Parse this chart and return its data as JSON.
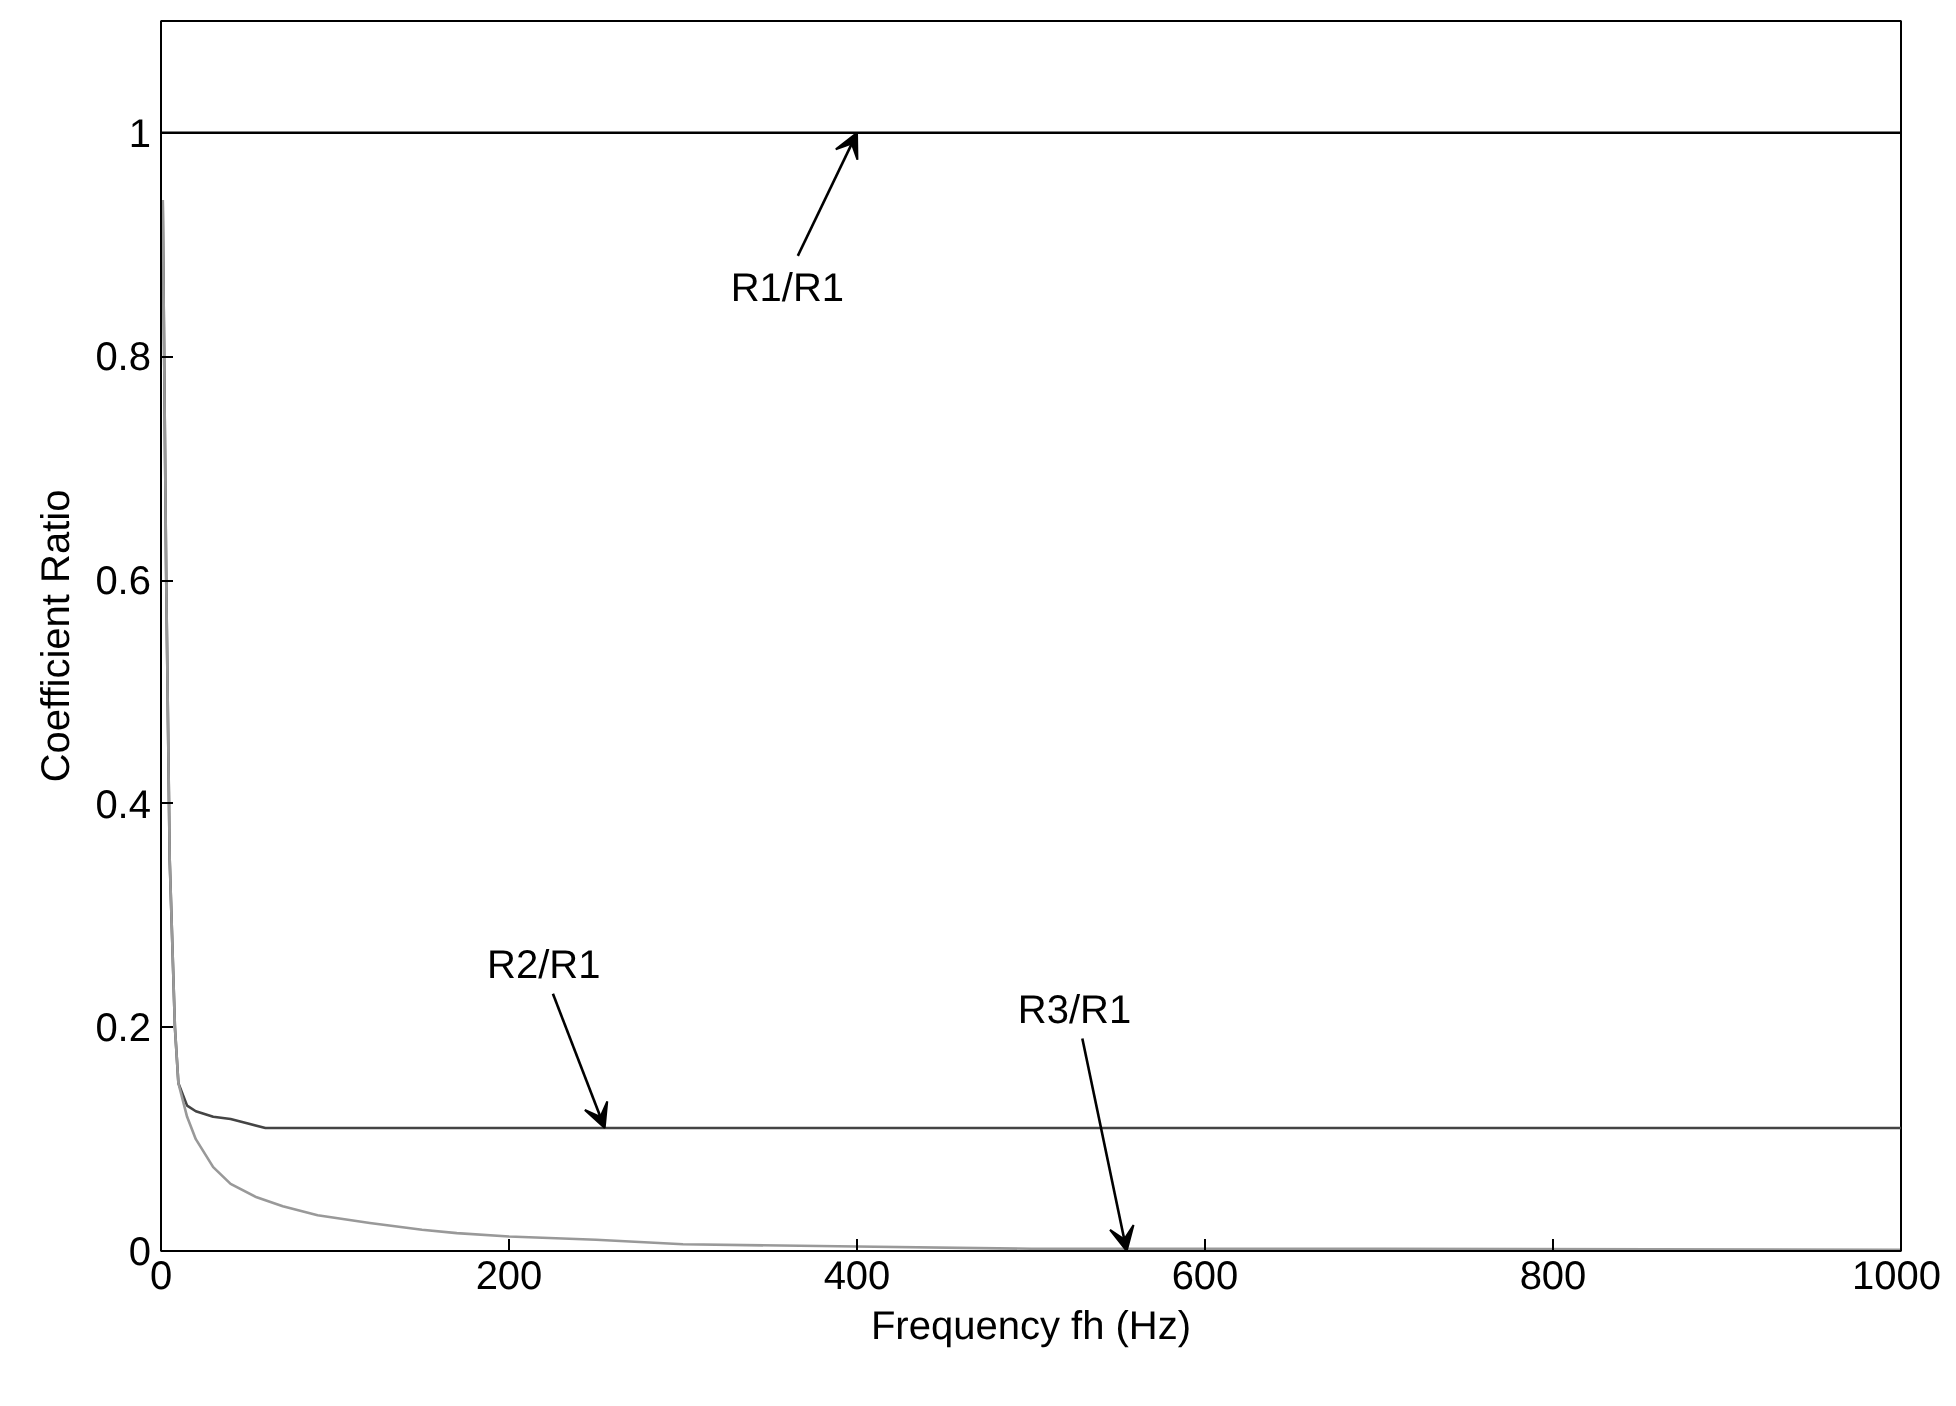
{
  "chart_data": {
    "type": "line",
    "xlabel": "Frequency fh (Hz)",
    "ylabel": "Coefficient Ratio",
    "xlim": [
      0,
      1000
    ],
    "ylim": [
      0,
      1.1
    ],
    "xticks": [
      0,
      200,
      400,
      600,
      800,
      1000
    ],
    "yticks": [
      0,
      0.2,
      0.4,
      0.6,
      0.8,
      1
    ],
    "grid": false,
    "marker": "none",
    "line_style": "solid",
    "series": [
      {
        "color": "#000000",
        "x": [
          0,
          1000
        ],
        "values": [
          1,
          1
        ]
      },
      {
        "color": "#444444",
        "x": [
          1,
          3,
          5,
          8,
          10,
          15,
          20,
          30,
          40,
          50,
          60,
          100,
          1000
        ],
        "values": [
          0.94,
          0.6,
          0.35,
          0.2,
          0.15,
          0.13,
          0.125,
          0.12,
          0.118,
          0.114,
          0.11,
          0.11,
          0.11
        ]
      },
      {
        "color": "#999999",
        "x": [
          1,
          3,
          5,
          8,
          10,
          15,
          20,
          30,
          40,
          55,
          70,
          90,
          120,
          150,
          170,
          200,
          250,
          300,
          400,
          500,
          700,
          1000
        ],
        "values": [
          0.94,
          0.6,
          0.35,
          0.2,
          0.15,
          0.12,
          0.1,
          0.075,
          0.06,
          0.048,
          0.04,
          0.032,
          0.025,
          0.019,
          0.016,
          0.013,
          0.01,
          0.006,
          0.004,
          0.002,
          0.002,
          0.001
        ]
      }
    ],
    "annotations": [
      {
        "text": "R1/R1",
        "x": 400,
        "y": 1
      },
      {
        "text": "R2/R1",
        "x": 255,
        "y": 0.11
      },
      {
        "text": "R3/R1",
        "x": 555,
        "y": 0
      }
    ]
  }
}
